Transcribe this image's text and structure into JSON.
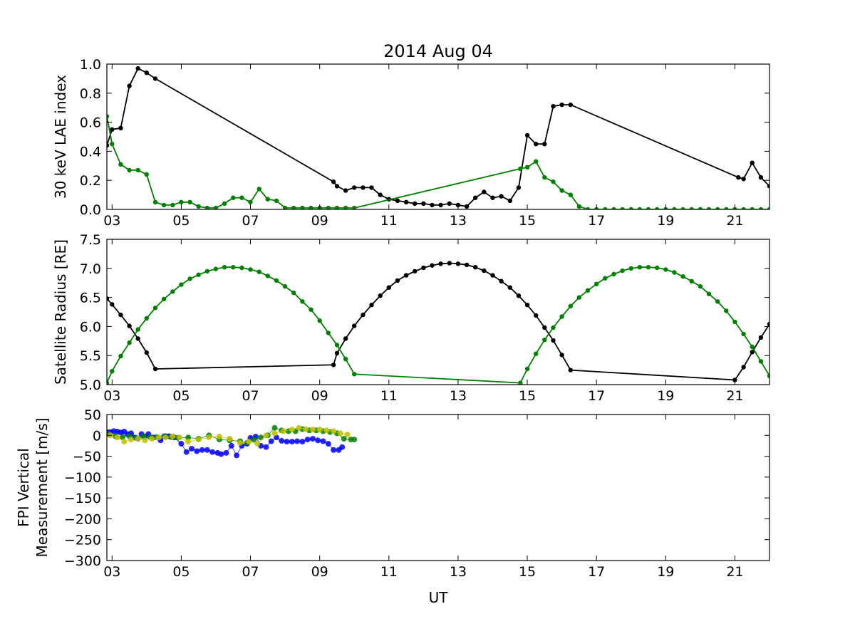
{
  "title": "2014 Aug 04",
  "colors": {
    "black": "#000000",
    "green": "#008000",
    "blue": "#0000ff",
    "yellow": "#bfbf00"
  },
  "x_axis": {
    "label": "UT",
    "range": [
      2.85,
      22.0
    ],
    "tick_values": [
      3,
      5,
      7,
      9,
      11,
      13,
      15,
      17,
      19,
      21
    ],
    "tick_labels": [
      "03",
      "05",
      "07",
      "09",
      "11",
      "13",
      "15",
      "17",
      "19",
      "21"
    ]
  },
  "chart_data": [
    {
      "type": "line",
      "name": "lae",
      "ylabel": "30 keV LAE index",
      "ylim": [
        0.0,
        1.0
      ],
      "y_ticks": [
        0.0,
        0.2,
        0.4,
        0.6,
        0.8,
        1.0
      ],
      "y_tick_labels": [
        "0.0",
        "0.2",
        "0.4",
        "0.6",
        "0.8",
        "1.0"
      ],
      "series": [
        {
          "color": "black",
          "x": [
            2.85,
            3.0,
            3.25,
            3.5,
            3.75,
            4.0,
            4.25,
            9.4,
            9.5,
            9.75,
            10.0,
            10.25,
            10.5,
            10.75,
            11.0,
            11.25,
            11.5,
            11.75,
            12.0,
            12.25,
            12.5,
            12.75,
            13.0,
            13.25,
            13.5,
            13.75,
            14.0,
            14.25,
            14.5,
            14.75,
            15.0,
            15.25,
            15.5,
            15.75,
            16.0,
            16.25,
            21.1,
            21.25,
            21.5,
            21.75,
            22.0
          ],
          "y": [
            0.44,
            0.55,
            0.56,
            0.85,
            0.97,
            0.94,
            0.9,
            0.19,
            0.16,
            0.13,
            0.15,
            0.15,
            0.15,
            0.1,
            0.07,
            0.06,
            0.05,
            0.04,
            0.04,
            0.03,
            0.03,
            0.04,
            0.03,
            0.02,
            0.08,
            0.12,
            0.08,
            0.09,
            0.06,
            0.15,
            0.51,
            0.45,
            0.45,
            0.71,
            0.72,
            0.72,
            0.22,
            0.21,
            0.32,
            0.22,
            0.16
          ]
        },
        {
          "color": "green",
          "x": [
            2.85,
            3.0,
            3.25,
            3.5,
            3.75,
            4.0,
            4.25,
            4.5,
            4.75,
            5.0,
            5.25,
            5.5,
            5.75,
            6.0,
            6.25,
            6.5,
            6.75,
            7.0,
            7.25,
            7.5,
            7.75,
            8.0,
            8.25,
            8.5,
            8.75,
            9.0,
            9.25,
            9.5,
            9.75,
            10.0,
            14.8,
            15.0,
            15.25,
            15.5,
            15.75,
            16.0,
            16.25,
            16.5,
            16.75,
            17.0,
            17.25,
            17.5,
            17.75,
            18.0,
            18.25,
            18.5,
            18.75,
            19.0,
            19.25,
            19.5,
            19.75,
            20.0,
            20.25,
            20.5,
            20.75,
            21.0,
            21.25,
            21.5,
            21.75,
            22.0
          ],
          "y": [
            0.64,
            0.45,
            0.31,
            0.27,
            0.27,
            0.24,
            0.05,
            0.03,
            0.03,
            0.05,
            0.05,
            0.02,
            0.01,
            0.01,
            0.04,
            0.08,
            0.08,
            0.05,
            0.14,
            0.07,
            0.06,
            0.01,
            0.01,
            0.01,
            0.01,
            0.01,
            0.01,
            0.01,
            0.01,
            0.01,
            0.28,
            0.29,
            0.33,
            0.22,
            0.19,
            0.13,
            0.1,
            0.02,
            0.0,
            0.0,
            0.0,
            0.0,
            0.0,
            0.0,
            0.0,
            0.0,
            0.0,
            0.0,
            0.0,
            0.0,
            0.0,
            0.0,
            0.0,
            0.0,
            0.0,
            0.0,
            0.0,
            0.0,
            0.0,
            0.0
          ]
        }
      ]
    },
    {
      "type": "line",
      "name": "radius",
      "ylabel": "Satellite Radius [RE]",
      "ylim": [
        5.0,
        7.5
      ],
      "y_ticks": [
        5.0,
        5.5,
        6.0,
        6.5,
        7.0,
        7.5
      ],
      "y_tick_labels": [
        "5.0",
        "5.5",
        "6.0",
        "6.5",
        "7.0",
        "7.5"
      ],
      "series": [
        {
          "color": "black",
          "x": [
            2.85,
            3.0,
            3.25,
            3.5,
            3.75,
            4.0,
            4.25,
            9.4,
            9.5,
            9.75,
            10.0,
            10.25,
            10.5,
            10.75,
            11.0,
            11.25,
            11.5,
            11.75,
            12.0,
            12.25,
            12.5,
            12.75,
            13.0,
            13.25,
            13.5,
            13.75,
            14.0,
            14.25,
            14.5,
            14.75,
            15.0,
            15.25,
            15.5,
            15.75,
            16.0,
            16.25,
            21.0,
            21.25,
            21.5,
            21.75,
            22.0
          ],
          "y": [
            6.48,
            6.38,
            6.2,
            6.01,
            5.79,
            5.55,
            5.27,
            5.34,
            5.54,
            5.79,
            6.01,
            6.2,
            6.37,
            6.53,
            6.67,
            6.79,
            6.88,
            6.95,
            7.01,
            7.05,
            7.08,
            7.09,
            7.08,
            7.06,
            7.02,
            6.96,
            6.88,
            6.78,
            6.67,
            6.53,
            6.37,
            6.19,
            5.98,
            5.76,
            5.51,
            5.25,
            5.08,
            5.3,
            5.56,
            5.81,
            6.04
          ]
        },
        {
          "color": "green",
          "x": [
            2.85,
            3.0,
            3.25,
            3.5,
            3.75,
            4.0,
            4.25,
            4.5,
            4.75,
            5.0,
            5.25,
            5.5,
            5.75,
            6.0,
            6.25,
            6.5,
            6.75,
            7.0,
            7.25,
            7.5,
            7.75,
            8.0,
            8.25,
            8.5,
            8.75,
            9.0,
            9.25,
            9.5,
            9.75,
            10.0,
            14.8,
            15.0,
            15.25,
            15.5,
            15.75,
            16.0,
            16.25,
            16.5,
            16.75,
            17.0,
            17.25,
            17.5,
            17.75,
            18.0,
            18.25,
            18.5,
            18.75,
            19.0,
            19.25,
            19.5,
            19.75,
            20.0,
            20.25,
            20.5,
            20.75,
            21.0,
            21.25,
            21.5,
            21.75,
            22.0
          ],
          "y": [
            5.03,
            5.23,
            5.49,
            5.72,
            5.95,
            6.14,
            6.32,
            6.47,
            6.6,
            6.72,
            6.82,
            6.89,
            6.95,
            6.99,
            7.02,
            7.02,
            7.01,
            6.98,
            6.94,
            6.87,
            6.79,
            6.69,
            6.58,
            6.43,
            6.29,
            6.1,
            5.89,
            5.68,
            5.44,
            5.18,
            5.03,
            5.27,
            5.53,
            5.77,
            5.98,
            6.17,
            6.35,
            6.5,
            6.62,
            6.73,
            6.83,
            6.9,
            6.96,
            7.0,
            7.02,
            7.02,
            7.01,
            6.98,
            6.93,
            6.86,
            6.78,
            6.69,
            6.56,
            6.43,
            6.27,
            6.08,
            5.87,
            5.65,
            5.4,
            5.15
          ]
        }
      ]
    },
    {
      "type": "scatter",
      "name": "fpi",
      "ylabel": "FPI Vertical Measurement [m/s]",
      "ylabel_lines": [
        "FPI Vertical",
        "Measurement [m/s]"
      ],
      "ylim": [
        -300,
        50
      ],
      "y_ticks": [
        50,
        0,
        -50,
        -100,
        -150,
        -200,
        -250,
        -300
      ],
      "y_tick_labels": [
        "50",
        "0",
        "−50",
        "−100",
        "−150",
        "−200",
        "−250",
        "−300"
      ],
      "series": [
        {
          "color": "blue",
          "x": [
            2.85,
            2.95,
            3.05,
            3.15,
            3.25,
            3.35,
            3.45,
            3.55,
            3.65,
            3.75,
            3.85,
            3.95,
            4.05,
            4.2,
            4.4,
            4.55,
            4.65,
            4.8,
            5.0,
            5.15,
            5.3,
            5.45,
            5.6,
            5.75,
            5.9,
            6.05,
            6.15,
            6.3,
            6.45,
            6.6,
            6.75,
            6.9,
            7.0,
            7.15,
            7.3,
            7.45,
            7.6,
            7.75,
            7.9,
            8.05,
            8.2,
            8.35,
            8.5,
            8.65,
            8.8,
            8.95,
            9.1,
            9.25,
            9.4,
            9.55,
            9.65
          ],
          "y": [
            8,
            8,
            10,
            9,
            7,
            9,
            3,
            5,
            -5,
            -8,
            3,
            -3,
            3,
            -5,
            -12,
            -2,
            -2,
            -5,
            -20,
            -40,
            -32,
            -38,
            -35,
            -35,
            -40,
            -42,
            -45,
            -42,
            -25,
            -48,
            -25,
            -20,
            -6,
            -3,
            -25,
            -28,
            -14,
            -5,
            -13,
            -15,
            -15,
            -14,
            -15,
            -10,
            -8,
            -12,
            -14,
            -20,
            -35,
            -35,
            -28
          ]
        },
        {
          "color": "green",
          "x": [
            2.9,
            3.1,
            3.3,
            3.5,
            3.7,
            3.9,
            4.1,
            4.3,
            4.5,
            4.7,
            4.9,
            5.2,
            5.5,
            5.8,
            6.1,
            6.4,
            6.7,
            6.9,
            7.1,
            7.3,
            7.5,
            7.7,
            7.9,
            8.1,
            8.3,
            8.5,
            8.7,
            8.9,
            9.1,
            9.3,
            9.5,
            9.7,
            9.9,
            10.0
          ],
          "y": [
            3,
            -2,
            -4,
            -2,
            -6,
            -2,
            -4,
            -4,
            -2,
            -4,
            -6,
            -5,
            -8,
            0,
            -10,
            -12,
            -14,
            -18,
            -10,
            -5,
            0,
            18,
            12,
            10,
            10,
            15,
            12,
            12,
            10,
            8,
            5,
            -8,
            -10,
            -10
          ]
        },
        {
          "color": "yellow",
          "x": [
            2.95,
            3.15,
            3.35,
            3.55,
            3.75,
            3.95,
            4.15,
            4.35,
            4.55,
            4.75,
            4.95,
            5.2,
            5.5,
            5.8,
            6.1,
            6.4,
            6.7,
            6.95,
            7.2,
            7.45,
            7.7,
            7.95,
            8.2,
            8.4,
            8.6,
            8.8,
            9.0,
            9.2,
            9.4,
            9.6,
            9.8
          ],
          "y": [
            0,
            -5,
            -15,
            -10,
            -8,
            -12,
            -8,
            -5,
            -5,
            -2,
            -5,
            -15,
            -10,
            -5,
            -3,
            -8,
            -18,
            -15,
            -20,
            0,
            5,
            10,
            14,
            18,
            15,
            14,
            14,
            12,
            10,
            5,
            2
          ]
        }
      ]
    }
  ]
}
